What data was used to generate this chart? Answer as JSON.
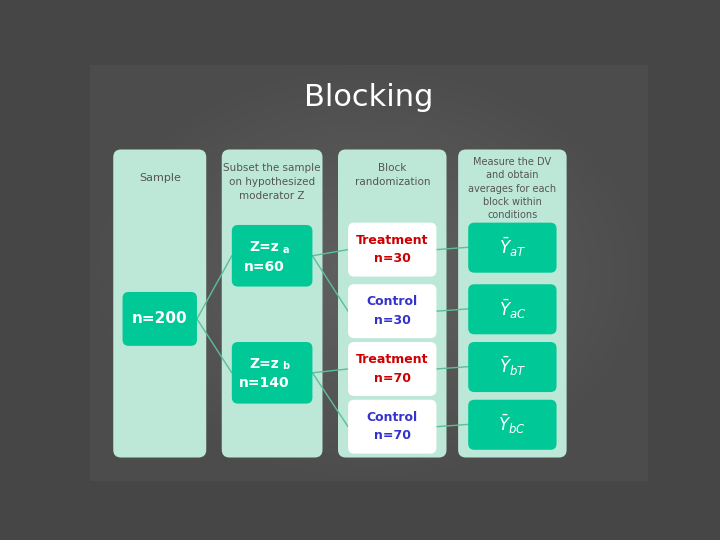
{
  "title": "Blocking",
  "bg_color": "#464646",
  "title_color": "#ffffff",
  "title_fontsize": 22,
  "col1_label": "Sample",
  "col2_label": "Subset the sample\non hypothesized\nmoderator Z",
  "col3_label": "Block\nrandomization",
  "col4_label": "Measure the DV\nand obtain\naverages for each\nblock within\nconditions",
  "panel_light": "#bde8d8",
  "panel_green": "#00c896",
  "panel_white": "#ffffff",
  "treatment_color": "#cc0000",
  "control_color": "#3333cc",
  "white_text": "#ffffff",
  "dark_text": "#555555"
}
